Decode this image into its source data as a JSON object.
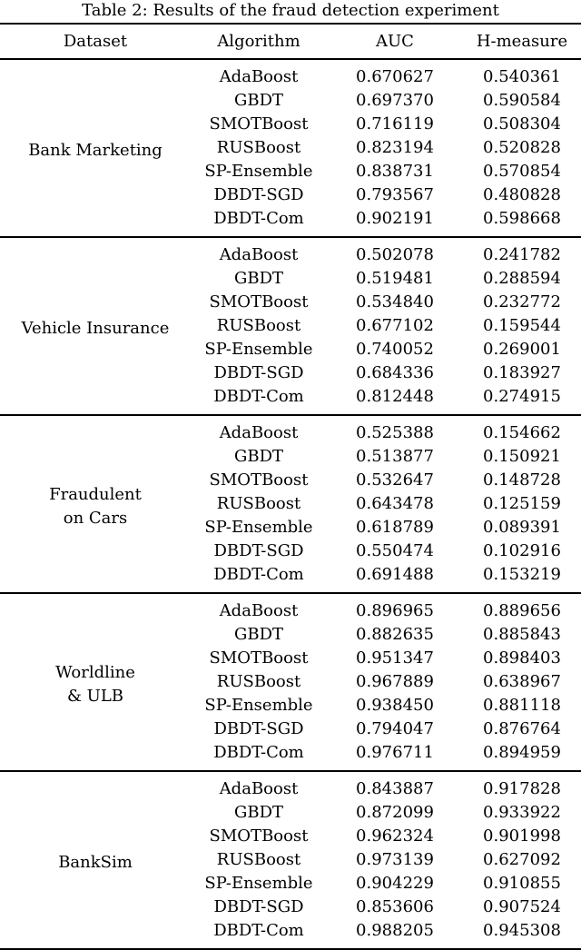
{
  "title": "Table 2: Results of the fraud detection experiment",
  "colors": {
    "text": "#000000",
    "background": "#ffffff",
    "rule": "#000000"
  },
  "columns": [
    "Dataset",
    "Algorithm",
    "AUC",
    "H-measure"
  ],
  "groups": [
    {
      "dataset_lines": [
        "Bank Marketing"
      ],
      "rows": [
        [
          "AdaBoost",
          "0.670627",
          "0.540361"
        ],
        [
          "GBDT",
          "0.697370",
          "0.590584"
        ],
        [
          "SMOTBoost",
          "0.716119",
          "0.508304"
        ],
        [
          "RUSBoost",
          "0.823194",
          "0.520828"
        ],
        [
          "SP-Ensemble",
          "0.838731",
          "0.570854"
        ],
        [
          "DBDT-SGD",
          "0.793567",
          "0.480828"
        ],
        [
          "DBDT-Com",
          "0.902191",
          "0.598668"
        ]
      ]
    },
    {
      "dataset_lines": [
        "Vehicle Insurance"
      ],
      "rows": [
        [
          "AdaBoost",
          "0.502078",
          "0.241782"
        ],
        [
          "GBDT",
          "0.519481",
          "0.288594"
        ],
        [
          "SMOTBoost",
          "0.534840",
          "0.232772"
        ],
        [
          "RUSBoost",
          "0.677102",
          "0.159544"
        ],
        [
          "SP-Ensemble",
          "0.740052",
          "0.269001"
        ],
        [
          "DBDT-SGD",
          "0.684336",
          "0.183927"
        ],
        [
          "DBDT-Com",
          "0.812448",
          "0.274915"
        ]
      ]
    },
    {
      "dataset_lines": [
        "Fraudulent",
        "on Cars"
      ],
      "rows": [
        [
          "AdaBoost",
          "0.525388",
          "0.154662"
        ],
        [
          "GBDT",
          "0.513877",
          "0.150921"
        ],
        [
          "SMOTBoost",
          "0.532647",
          "0.148728"
        ],
        [
          "RUSBoost",
          "0.643478",
          "0.125159"
        ],
        [
          "SP-Ensemble",
          "0.618789",
          "0.089391"
        ],
        [
          "DBDT-SGD",
          "0.550474",
          "0.102916"
        ],
        [
          "DBDT-Com",
          "0.691488",
          "0.153219"
        ]
      ]
    },
    {
      "dataset_lines": [
        "Worldline",
        "& ULB"
      ],
      "rows": [
        [
          "AdaBoost",
          "0.896965",
          "0.889656"
        ],
        [
          "GBDT",
          "0.882635",
          "0.885843"
        ],
        [
          "SMOTBoost",
          "0.951347",
          "0.898403"
        ],
        [
          "RUSBoost",
          "0.967889",
          "0.638967"
        ],
        [
          "SP-Ensemble",
          "0.938450",
          "0.881118"
        ],
        [
          "DBDT-SGD",
          "0.794047",
          "0.876764"
        ],
        [
          "DBDT-Com",
          "0.976711",
          "0.894959"
        ]
      ]
    },
    {
      "dataset_lines": [
        "BankSim"
      ],
      "rows": [
        [
          "AdaBoost",
          "0.843887",
          "0.917828"
        ],
        [
          "GBDT",
          "0.872099",
          "0.933922"
        ],
        [
          "SMOTBoost",
          "0.962324",
          "0.901998"
        ],
        [
          "RUSBoost",
          "0.973139",
          "0.627092"
        ],
        [
          "SP-Ensemble",
          "0.904229",
          "0.910855"
        ],
        [
          "DBDT-SGD",
          "0.853606",
          "0.907524"
        ],
        [
          "DBDT-Com",
          "0.988205",
          "0.945308"
        ]
      ]
    }
  ]
}
